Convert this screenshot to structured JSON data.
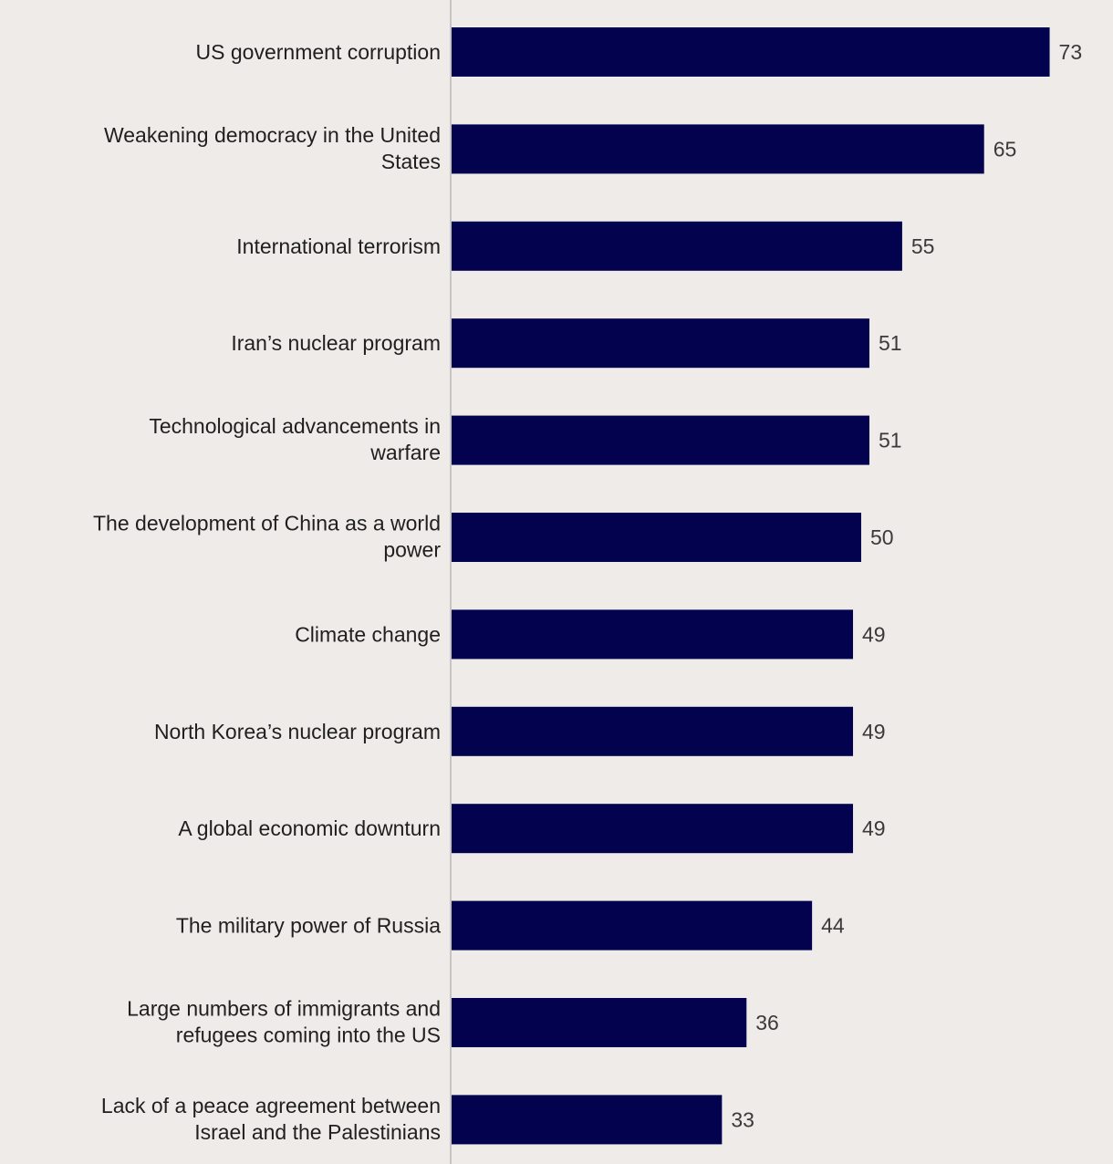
{
  "chart_data": {
    "type": "bar",
    "orientation": "horizontal",
    "title": "",
    "xlabel": "",
    "ylabel": "",
    "xlim": [
      0,
      80
    ],
    "grid": false,
    "legend": "none",
    "colors": {
      "bar": "#02024f",
      "background": "#efebe8",
      "axis": "#c8c4c1"
    },
    "categories": [
      "US government corruption",
      "Weakening democracy in the United States",
      "International terrorism",
      "Iran’s nuclear program",
      "Technological advancements in warfare",
      "The development of China as a world power",
      "Climate change",
      "North Korea’s nuclear program",
      "A global economic downturn",
      "The military power of Russia",
      "Large numbers of immigrants and refugees coming into the US",
      "Lack of a peace agreement between Israel and the Palestinians"
    ],
    "category_lines": [
      [
        "US government corruption"
      ],
      [
        "Weakening democracy in the United",
        "States"
      ],
      [
        "International terrorism"
      ],
      [
        "Iran’s nuclear program"
      ],
      [
        "Technological advancements in",
        "warfare"
      ],
      [
        "The development of China as a world",
        "power"
      ],
      [
        "Climate change"
      ],
      [
        "North Korea’s nuclear program"
      ],
      [
        "A global economic downturn"
      ],
      [
        "The military power of Russia"
      ],
      [
        "Large numbers of immigrants and",
        "refugees coming into the US"
      ],
      [
        "Lack of a peace agreement between",
        "Israel and the Palestinians"
      ]
    ],
    "values": [
      73,
      65,
      55,
      51,
      51,
      50,
      49,
      49,
      49,
      44,
      36,
      33
    ]
  }
}
